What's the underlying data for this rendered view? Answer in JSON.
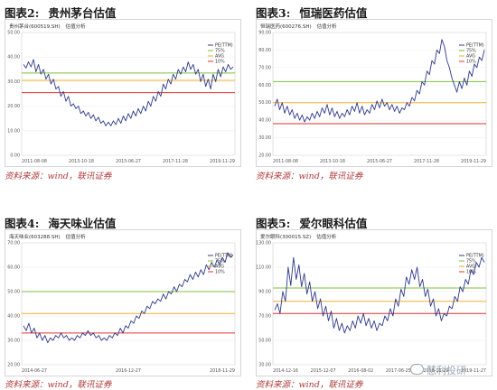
{
  "panels": [
    {
      "title_num": "图表2:",
      "title_text": "贵州茅台估值",
      "header_code": "贵州茅台(600519.SH)",
      "header_tag": "估值分析",
      "source": "资料来源：wind，联讯证券"
    },
    {
      "title_num": "图表3:",
      "title_text": "恒瑞医药估值",
      "header_code": "恒瑞医药(600276.SH)",
      "header_tag": "估值分析",
      "source": "资料来源：wind，联讯证券"
    },
    {
      "title_num": "图表4:",
      "title_text": "海天味业估值",
      "header_code": "海天味业(603288.SH)",
      "header_tag": "估值分析",
      "source": "资料来源：wind，联讯证券"
    },
    {
      "title_num": "图表5:",
      "title_text": "爱尔眼科估值",
      "header_code": "爱尔眼科(300015.SZ)",
      "header_tag": "估值分析",
      "source": "资料来源：wind，联讯证券"
    }
  ],
  "watermark": "慧利投研",
  "chart_data": [
    {
      "type": "line",
      "colors": {
        "line": "#2e3a8c",
        "p90": "#7fbf3f",
        "p75": "#f0b030",
        "avg": "#f07a30",
        "p10": "#e03030"
      },
      "x_ticks": [
        "2011-08-08",
        "2013-10-18",
        "2015-06-27",
        "2017-11-28",
        "2019-11-29"
      ],
      "y_ticks": [
        "0.00",
        "10.00",
        "20.00",
        "30.00",
        "40.00",
        "50.00"
      ],
      "ylim": [
        0,
        50
      ],
      "series": [
        {
          "name": "PE(TTM)",
          "values": [
            37,
            35.5,
            38,
            36,
            39,
            34,
            37,
            33,
            35,
            31,
            33,
            29,
            31,
            27,
            28,
            24,
            26,
            22,
            24,
            20,
            21,
            19,
            20,
            17,
            18,
            16,
            17.5,
            15,
            16.5,
            14,
            15.5,
            13,
            14,
            12,
            13.5,
            12,
            14,
            12.5,
            15,
            13,
            16,
            14,
            17,
            15,
            18,
            16,
            19,
            17,
            20,
            18,
            22,
            20,
            24,
            22,
            26,
            24,
            29,
            27,
            31,
            29,
            33,
            31,
            35,
            33,
            36,
            34,
            38,
            35,
            37,
            33,
            35,
            30,
            33,
            28,
            31,
            27,
            33,
            30,
            35,
            32,
            36,
            34,
            37,
            35,
            36
          ]
        },
        {
          "name": "75%",
          "values": [
            33.5
          ]
        },
        {
          "name": "AVG",
          "values": [
            30.5
          ]
        },
        {
          "name": "10%",
          "values": [
            25.5
          ]
        }
      ]
    },
    {
      "type": "line",
      "colors": {
        "line": "#2e3a8c",
        "p90": "#7fbf3f",
        "p75": "#f0b030",
        "avg": "#f07a30",
        "p10": "#e03030"
      },
      "x_ticks": [
        "2011-08-08",
        "2013-10-18",
        "2015-06-27",
        "2017-11-28",
        "2019-11-29"
      ],
      "y_ticks": [
        "20.00",
        "30.00",
        "40.00",
        "50.00",
        "60.00",
        "70.00",
        "80.00",
        "90.00"
      ],
      "ylim": [
        20,
        90
      ],
      "series": [
        {
          "name": "PE(TTM)",
          "values": [
            48,
            52,
            46,
            50,
            44,
            48,
            43,
            46,
            41,
            44,
            40,
            43,
            39,
            42,
            40,
            44,
            41,
            45,
            42,
            47,
            44,
            49,
            43,
            47,
            42,
            45,
            41,
            44,
            42,
            46,
            43,
            48,
            45,
            50,
            44,
            48,
            43,
            46,
            44,
            49,
            46,
            51,
            47,
            52,
            48,
            50,
            46,
            49,
            45,
            48,
            44,
            47,
            46,
            50,
            48,
            53,
            51,
            57,
            55,
            62,
            60,
            68,
            66,
            74,
            72,
            80,
            78,
            86,
            82,
            74,
            70,
            64,
            60,
            56,
            62,
            58,
            64,
            60,
            68,
            65,
            72,
            70,
            76,
            74,
            80
          ]
        },
        {
          "name": "75%",
          "values": [
            62
          ]
        },
        {
          "name": "AVG",
          "values": [
            50
          ]
        },
        {
          "name": "10%",
          "values": [
            38
          ]
        }
      ]
    },
    {
      "type": "line",
      "colors": {
        "line": "#2e3a8c",
        "p90": "#7fbf3f",
        "p75": "#f0b030",
        "avg": "#f07a30",
        "p10": "#e03030"
      },
      "x_ticks": [
        "2014-06-27",
        "2016-12-27",
        "2018-11-29"
      ],
      "y_ticks": [
        "20.00",
        "30.00",
        "40.00",
        "50.00",
        "60.00",
        "70.00"
      ],
      "ylim": [
        20,
        70
      ],
      "series": [
        {
          "name": "PE(TTM)",
          "values": [
            36,
            34,
            37,
            33,
            35,
            31,
            33,
            30,
            32,
            29,
            31,
            30,
            32,
            31,
            33,
            31,
            32,
            30,
            31,
            30,
            32,
            31,
            33,
            32,
            34,
            32,
            33,
            31,
            32,
            30,
            31,
            30,
            32,
            31,
            33,
            32,
            35,
            33,
            36,
            35,
            38,
            37,
            40,
            39,
            42,
            41,
            44,
            43,
            46,
            45,
            47,
            46,
            49,
            47,
            50,
            49,
            52,
            50,
            53,
            52,
            55,
            54,
            57,
            55,
            58,
            56,
            59,
            57,
            61,
            59,
            62,
            60,
            63,
            61,
            64,
            62,
            66,
            64,
            65
          ]
        },
        {
          "name": "75%",
          "values": [
            50
          ]
        },
        {
          "name": "AVG",
          "values": [
            41
          ]
        },
        {
          "name": "10%",
          "values": [
            33
          ]
        }
      ]
    },
    {
      "type": "line",
      "colors": {
        "line": "#2e3a8c",
        "p90": "#7fbf3f",
        "p75": "#f0b030",
        "avg": "#f07a30",
        "p10": "#e03030"
      },
      "x_ticks": [
        "2014-12-16",
        "2015-12-07",
        "2016-08-02",
        "2017-06-25",
        "2018-11-29",
        "2019-11-27"
      ],
      "y_ticks": [
        "30.00",
        "50.00",
        "70.00",
        "90.00",
        "110.00",
        "130.00"
      ],
      "ylim": [
        30,
        130
      ],
      "series": [
        {
          "name": "PE(TTM)",
          "values": [
            75,
            80,
            72,
            90,
            82,
            110,
            95,
            118,
            100,
            112,
            94,
            105,
            88,
            98,
            82,
            90,
            76,
            84,
            70,
            78,
            66,
            74,
            60,
            68,
            58,
            64,
            56,
            62,
            58,
            66,
            60,
            70,
            64,
            72,
            62,
            68,
            60,
            66,
            58,
            64,
            62,
            70,
            66,
            76,
            70,
            84,
            78,
            92,
            86,
            102,
            96,
            108,
            100,
            110,
            94,
            100,
            86,
            92,
            78,
            84,
            70,
            76,
            66,
            72,
            70,
            78,
            76,
            86,
            82,
            94,
            90,
            100,
            96,
            108,
            104,
            114,
            110,
            118,
            114
          ]
        },
        {
          "name": "75%",
          "values": [
            93
          ]
        },
        {
          "name": "AVG",
          "values": [
            82
          ]
        },
        {
          "name": "10%",
          "values": [
            72
          ]
        }
      ]
    }
  ]
}
